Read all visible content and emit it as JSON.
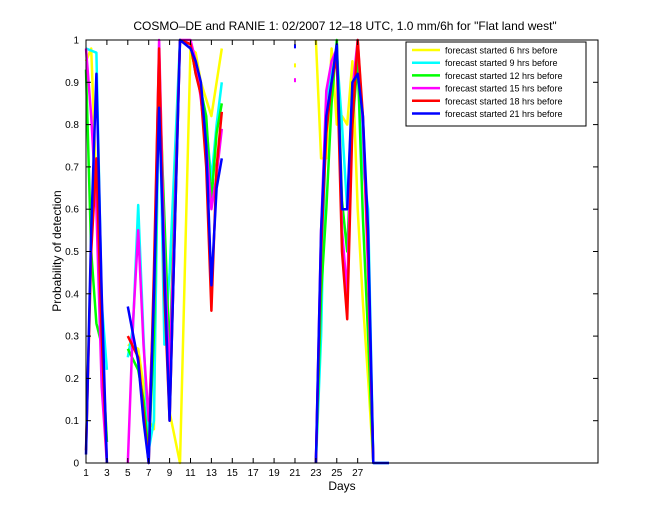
{
  "chart_data": {
    "type": "line",
    "title": "COSMO–DE and RANIE 1: 02/2007 12–18 UTC, 1.0 mm/6h for \"Flat land west\"",
    "xlabel": "Days",
    "ylabel": "Probability of detection",
    "xlim": [
      1,
      50
    ],
    "ylim": [
      0,
      1
    ],
    "xticks": [
      "1",
      "3",
      "5",
      "7",
      "9",
      "11",
      "13",
      "15",
      "17",
      "19",
      "21",
      "23",
      "25",
      "27"
    ],
    "yticks": [
      "0",
      "0.1",
      "0.2",
      "0.3",
      "0.4",
      "0.5",
      "0.6",
      "0.7",
      "0.8",
      "0.9",
      "1"
    ],
    "grid": false,
    "legend_position": "top-right",
    "series": [
      {
        "name": "forecast started 6 hrs before",
        "color": "#ffff00",
        "segments": [
          [
            [
              1,
              0.95
            ],
            [
              1.5,
              0.98
            ],
            [
              2,
              0.65
            ],
            [
              2.5,
              0.28
            ],
            [
              3,
              0.05
            ]
          ],
          [
            [
              5,
              0.28
            ],
            [
              6,
              0.27
            ],
            [
              7,
              0.1
            ],
            [
              7.5,
              0.08
            ],
            [
              8,
              0.97
            ],
            [
              8.5,
              0.55
            ],
            [
              9,
              0.12
            ],
            [
              10,
              0.0
            ],
            [
              10.5,
              0.5
            ],
            [
              11,
              0.98
            ],
            [
              11.5,
              0.97
            ],
            [
              12,
              0.9
            ],
            [
              12.5,
              0.86
            ],
            [
              13,
              0.82
            ],
            [
              13.5,
              0.9
            ],
            [
              14,
              0.98
            ]
          ],
          [
            [
              23,
              1.0
            ],
            [
              23.5,
              0.72
            ],
            [
              24,
              0.72
            ],
            [
              24.5,
              0.98
            ],
            [
              25,
              0.8
            ],
            [
              25.5,
              0.82
            ],
            [
              26,
              0.8
            ],
            [
              26.5,
              0.95
            ],
            [
              27,
              0.6
            ],
            [
              27.5,
              0.38
            ],
            [
              28,
              0.2
            ],
            [
              28.5,
              0.0
            ]
          ]
        ]
      },
      {
        "name": "forecast started 9 hrs before",
        "color": "#00ffff",
        "segments": [
          [
            [
              1,
              0.98
            ],
            [
              2,
              0.97
            ],
            [
              2.5,
              0.38
            ],
            [
              3,
              0.22
            ]
          ],
          [
            [
              5,
              0.25
            ],
            [
              5.5,
              0.32
            ],
            [
              6,
              0.61
            ],
            [
              6.5,
              0.3
            ],
            [
              7,
              0.03
            ],
            [
              7.5,
              0.1
            ],
            [
              8,
              0.92
            ],
            [
              8.5,
              0.28
            ],
            [
              9,
              0.45
            ],
            [
              10,
              1.0
            ],
            [
              11,
              0.99
            ],
            [
              11.5,
              0.95
            ],
            [
              12,
              0.89
            ],
            [
              12.5,
              0.8
            ],
            [
              13,
              0.67
            ],
            [
              13.5,
              0.8
            ],
            [
              14,
              0.9
            ]
          ],
          [
            [
              23,
              0.0
            ],
            [
              23.5,
              0.3
            ],
            [
              24,
              0.86
            ],
            [
              24.5,
              0.92
            ],
            [
              25,
              0.97
            ],
            [
              25.5,
              0.8
            ],
            [
              26,
              0.6
            ],
            [
              26.5,
              0.88
            ],
            [
              27,
              0.95
            ],
            [
              27.5,
              0.7
            ],
            [
              28,
              0.6
            ],
            [
              28.5,
              0.0
            ],
            [
              29,
              0.0
            ],
            [
              30,
              0.0
            ]
          ]
        ]
      },
      {
        "name": "forecast started 12 hrs before",
        "color": "#00ff00",
        "segments": [
          [
            [
              1,
              0.93
            ],
            [
              1.5,
              0.5
            ],
            [
              2,
              0.33
            ],
            [
              2.5,
              0.28
            ],
            [
              3,
              0.05
            ]
          ],
          [
            [
              5,
              0.27
            ],
            [
              6,
              0.22
            ],
            [
              6.5,
              0.15
            ],
            [
              7,
              0.02
            ],
            [
              7.5,
              0.3
            ],
            [
              8,
              0.91
            ],
            [
              8.5,
              0.58
            ],
            [
              9,
              0.25
            ],
            [
              10,
              1.0
            ],
            [
              11,
              0.99
            ],
            [
              11.5,
              0.92
            ],
            [
              12,
              0.88
            ],
            [
              12.5,
              0.82
            ],
            [
              13,
              0.62
            ],
            [
              13.5,
              0.78
            ],
            [
              14,
              0.85
            ]
          ],
          [
            [
              23,
              0.0
            ],
            [
              23.5,
              0.4
            ],
            [
              24,
              0.6
            ],
            [
              24.5,
              0.85
            ],
            [
              25,
              1.0
            ],
            [
              25.5,
              0.62
            ],
            [
              26,
              0.5
            ],
            [
              26.5,
              0.8
            ],
            [
              27,
              0.95
            ],
            [
              27.5,
              0.58
            ],
            [
              28,
              0.3
            ],
            [
              28.5,
              0.0
            ]
          ]
        ]
      },
      {
        "name": "forecast started 15 hrs before",
        "color": "#ff00ff",
        "segments": [
          [
            [
              1,
              0.98
            ],
            [
              1.5,
              0.82
            ],
            [
              2,
              0.6
            ],
            [
              2.5,
              0.18
            ],
            [
              3,
              0.0
            ]
          ],
          [
            [
              5,
              0.0
            ],
            [
              5.5,
              0.33
            ],
            [
              6,
              0.55
            ],
            [
              6.5,
              0.28
            ],
            [
              7,
              0.1
            ],
            [
              7.5,
              0.38
            ],
            [
              8,
              1.0
            ],
            [
              8.5,
              0.48
            ],
            [
              9,
              0.2
            ],
            [
              10,
              1.0
            ],
            [
              11,
              1.0
            ],
            [
              11.5,
              0.95
            ],
            [
              12,
              0.86
            ],
            [
              12.5,
              0.75
            ],
            [
              13,
              0.6
            ],
            [
              13.5,
              0.68
            ],
            [
              14,
              0.79
            ]
          ],
          [
            [
              23,
              0.0
            ],
            [
              23.5,
              0.55
            ],
            [
              24,
              0.88
            ],
            [
              24.5,
              0.95
            ],
            [
              25,
              0.98
            ],
            [
              25.5,
              0.55
            ],
            [
              26,
              0.4
            ],
            [
              26.5,
              0.88
            ],
            [
              27,
              1.0
            ],
            [
              27.5,
              0.8
            ],
            [
              28,
              0.45
            ],
            [
              28.5,
              0.0
            ]
          ]
        ]
      },
      {
        "name": "forecast started 18 hrs before",
        "color": "#ff0000",
        "segments": [
          [
            [
              1,
              0.03
            ],
            [
              1.5,
              0.5
            ],
            [
              2,
              0.72
            ],
            [
              2.5,
              0.3
            ],
            [
              3,
              0.0
            ]
          ],
          [
            [
              5,
              0.3
            ],
            [
              6,
              0.25
            ],
            [
              6.5,
              0.12
            ],
            [
              7,
              0.0
            ],
            [
              7.5,
              0.45
            ],
            [
              8,
              0.98
            ],
            [
              8.5,
              0.4
            ],
            [
              9,
              0.1
            ],
            [
              10,
              1.0
            ],
            [
              11,
              0.99
            ],
            [
              11.5,
              0.92
            ],
            [
              12,
              0.87
            ],
            [
              12.5,
              0.7
            ],
            [
              13,
              0.36
            ],
            [
              13.5,
              0.7
            ],
            [
              14,
              0.83
            ]
          ],
          [
            [
              23,
              0.0
            ],
            [
              23.5,
              0.5
            ],
            [
              24,
              0.78
            ],
            [
              24.5,
              0.9
            ],
            [
              25,
              0.96
            ],
            [
              25.5,
              0.5
            ],
            [
              26,
              0.34
            ],
            [
              26.5,
              0.8
            ],
            [
              27,
              1.0
            ],
            [
              27.5,
              0.82
            ],
            [
              28,
              0.5
            ],
            [
              28.5,
              0.0
            ]
          ]
        ]
      },
      {
        "name": "forecast started 21 hrs before",
        "color": "#0000ff",
        "segments": [
          [
            [
              1,
              0.02
            ],
            [
              1.5,
              0.55
            ],
            [
              2,
              0.92
            ],
            [
              2.5,
              0.4
            ],
            [
              3,
              0.0
            ]
          ],
          [
            [
              5,
              0.37
            ],
            [
              6,
              0.24
            ],
            [
              6.5,
              0.1
            ],
            [
              7,
              0.0
            ],
            [
              7.5,
              0.4
            ],
            [
              8,
              0.84
            ],
            [
              8.5,
              0.45
            ],
            [
              9,
              0.1
            ],
            [
              10,
              1.0
            ],
            [
              11,
              0.98
            ],
            [
              11.5,
              0.95
            ],
            [
              12,
              0.9
            ],
            [
              12.5,
              0.75
            ],
            [
              13,
              0.42
            ],
            [
              13.5,
              0.65
            ],
            [
              14,
              0.72
            ]
          ],
          [
            [
              23,
              0.0
            ],
            [
              23.5,
              0.55
            ],
            [
              24,
              0.82
            ],
            [
              24.5,
              0.9
            ],
            [
              25,
              0.99
            ],
            [
              25.5,
              0.6
            ],
            [
              26,
              0.6
            ],
            [
              26.5,
              0.9
            ],
            [
              27,
              0.92
            ],
            [
              27.5,
              0.82
            ],
            [
              28,
              0.55
            ],
            [
              28.5,
              0.0
            ],
            [
              29,
              0.0
            ],
            [
              30,
              0.0
            ]
          ]
        ]
      }
    ],
    "stray_marks": [
      {
        "x": 21,
        "y": 0.985,
        "color": "#0000ff"
      },
      {
        "x": 21,
        "y": 0.94,
        "color": "#ffff00"
      },
      {
        "x": 21,
        "y": 0.905,
        "color": "#ff00ff"
      }
    ]
  }
}
